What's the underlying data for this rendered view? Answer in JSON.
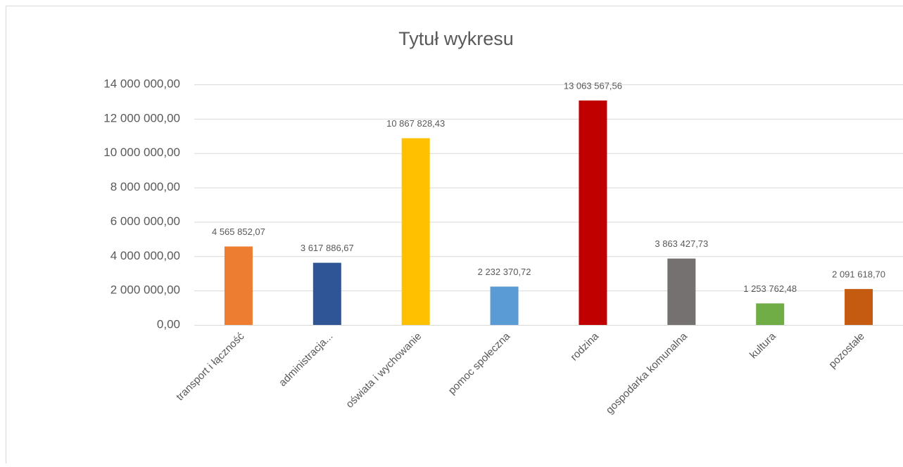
{
  "chart_data": {
    "type": "bar",
    "title": "Tytuł wykresu",
    "categories": [
      "transport i łączność",
      "administracja...",
      "oświata i wychowanie",
      "pomoc społeczna",
      "rodzina",
      "gospodarka komunalna",
      "kultura",
      "pozostałe"
    ],
    "values": [
      4565852.07,
      3617886.67,
      10867828.43,
      2232370.72,
      13063567.56,
      3863427.73,
      1253762.48,
      2091618.7
    ],
    "value_labels": [
      "4 565 852,07",
      "3 617 886,67",
      "10 867 828,43",
      "2 232 370,72",
      "13 063 567,56",
      "3 863 427,73",
      "1 253 762,48",
      "2 091 618,70"
    ],
    "colors": [
      "#ed7d31",
      "#2f5597",
      "#ffc000",
      "#5b9bd5",
      "#c00000",
      "#767171",
      "#70ad47",
      "#c55a11"
    ],
    "ylim": [
      0,
      14000000
    ],
    "yticks": [
      {
        "value": 0,
        "label": "0,00"
      },
      {
        "value": 2000000,
        "label": "2 000 000,00"
      },
      {
        "value": 4000000,
        "label": "4 000 000,00"
      },
      {
        "value": 6000000,
        "label": "6 000 000,00"
      },
      {
        "value": 8000000,
        "label": "8 000 000,00"
      },
      {
        "value": 10000000,
        "label": "10 000 000,00"
      },
      {
        "value": 12000000,
        "label": "12 000 000,00"
      },
      {
        "value": 14000000,
        "label": "14 000 000,00"
      }
    ],
    "grid": true
  }
}
